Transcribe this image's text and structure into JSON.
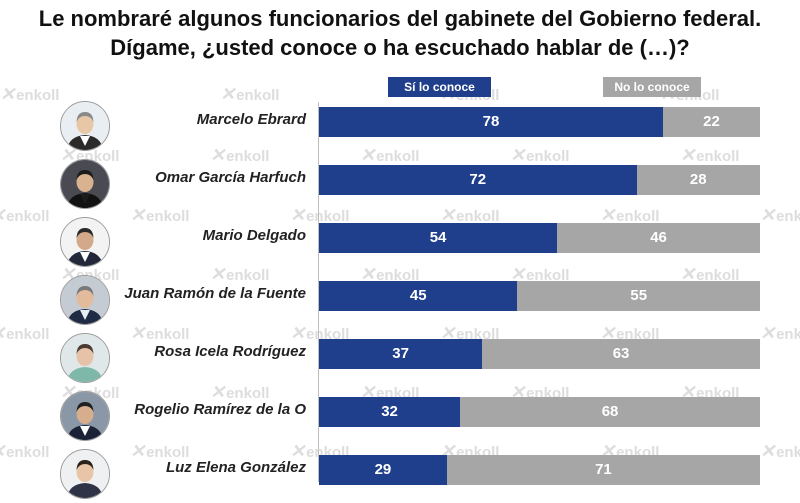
{
  "title_line1": "Le nombraré algunos funcionarios del gabinete del Gobierno federal.",
  "title_line2": "Dígame, ¿usted conoce o ha escuchado hablar de (…)?",
  "watermark": "enkoll",
  "colors": {
    "si": "#1f3e8c",
    "no": "#a6a6a6"
  },
  "chart_data": {
    "type": "bar",
    "orientation": "horizontal",
    "stacked": true,
    "categories": [
      "Marcelo Ebrard",
      "Omar García Harfuch",
      "Mario Delgado",
      "Juan Ramón de la Fuente",
      "Rosa Icela Rodríguez",
      "Rogelio Ramírez de la O",
      "Luz Elena González"
    ],
    "series": [
      {
        "name": "Sí lo conoce",
        "values": [
          78,
          72,
          54,
          45,
          37,
          32,
          29
        ],
        "color": "#1f3e8c"
      },
      {
        "name": "No lo conoce",
        "values": [
          22,
          28,
          46,
          55,
          63,
          68,
          71
        ],
        "color": "#a6a6a6"
      }
    ],
    "xlim": [
      0,
      100
    ],
    "legend_position": "top",
    "grid": false
  }
}
